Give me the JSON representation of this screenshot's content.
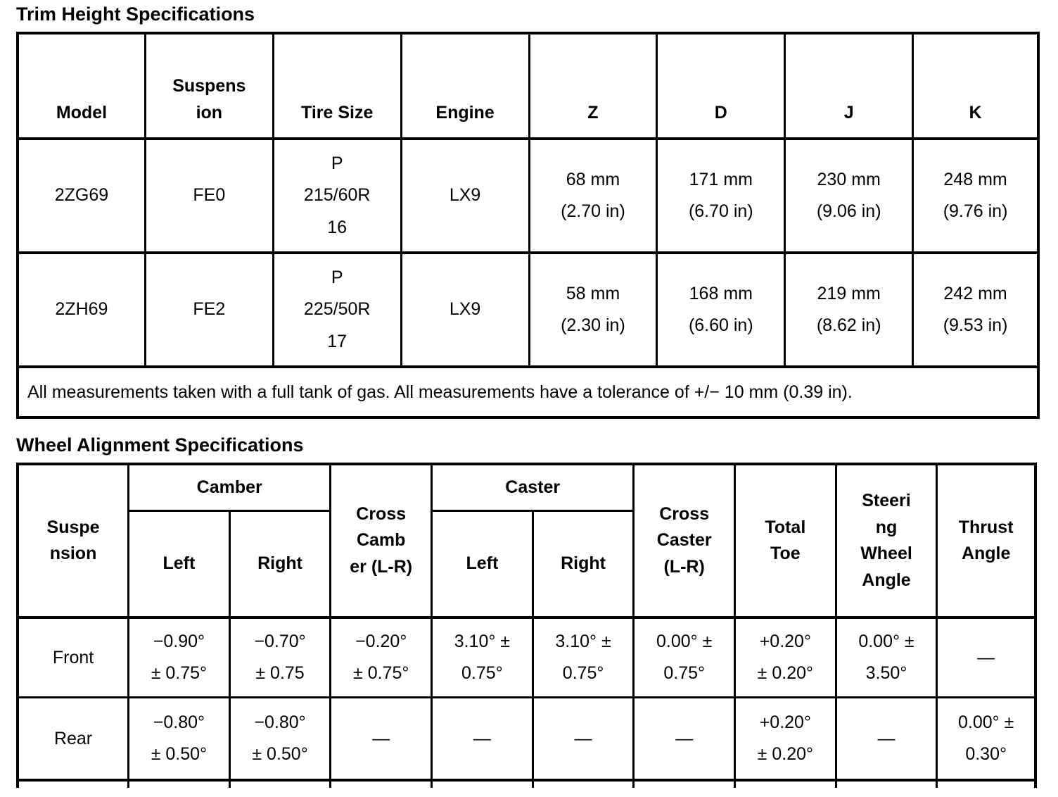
{
  "trim_table": {
    "title": "Trim Height Specifications",
    "columns": [
      "Model",
      "Suspens\nion",
      "Tire Size",
      "Engine",
      "Z",
      "D",
      "J",
      "K"
    ],
    "rows": [
      {
        "model": "2ZG69",
        "suspension": "FE0",
        "tire_size": "P\n215/60R\n16",
        "engine": "LX9",
        "z": "68 mm\n(2.70 in)",
        "d": "171 mm\n(6.70 in)",
        "j": "230 mm\n(9.06 in)",
        "k": "248 mm\n(9.76 in)"
      },
      {
        "model": "2ZH69",
        "suspension": "FE2",
        "tire_size": "P\n225/50R\n17",
        "engine": "LX9",
        "z": "58 mm\n(2.30 in)",
        "d": "168 mm\n(6.60 in)",
        "j": "219 mm\n(8.62 in)",
        "k": "242 mm\n(9.53 in)"
      }
    ],
    "note": "All measurements taken with a full tank of gas. All measurements have a tolerance of +/− 10 mm (0.39 in)."
  },
  "alignment_table": {
    "title": "Wheel Alignment Specifications",
    "headers": {
      "suspension": "Suspe\nnsion",
      "camber": "Camber",
      "cross_camber": "Cross\nCamb\ner (L-R)",
      "caster": "Caster",
      "cross_caster": "Cross\nCaster\n(L-R)",
      "total_toe": "Total\nToe",
      "steering_wheel_angle": "Steeri\nng\nWheel\nAngle",
      "thrust_angle": "Thrust\nAngle",
      "left": "Left",
      "right": "Right"
    },
    "rows": [
      {
        "label": "Front",
        "camber_left": "−0.90°\n± 0.75°",
        "camber_right": "−0.70°\n± 0.75",
        "cross_camber": "−0.20°\n± 0.75°",
        "caster_left": "3.10° ±\n0.75°",
        "caster_right": "3.10° ±\n0.75°",
        "cross_caster": "0.00° ±\n0.75°",
        "total_toe": "+0.20°\n± 0.20°",
        "steering_wheel_angle": "0.00° ±\n3.50°",
        "thrust_angle": "—"
      },
      {
        "label": "Rear",
        "camber_left": "−0.80°\n± 0.50°",
        "camber_right": "−0.80°\n± 0.50°",
        "cross_camber": "—",
        "caster_left": "—",
        "caster_right": "—",
        "cross_caster": "—",
        "total_toe": "+0.20°\n± 0.20°",
        "steering_wheel_angle": "—",
        "thrust_angle": "0.00° ±\n0.30°"
      }
    ]
  }
}
